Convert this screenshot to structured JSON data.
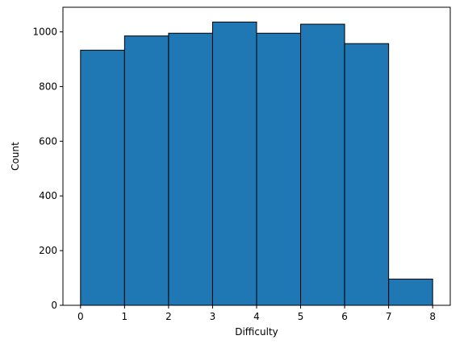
{
  "chart_data": {
    "type": "bar",
    "histogram": true,
    "bin_edges": [
      0,
      1,
      2,
      3,
      4,
      5,
      6,
      7,
      8
    ],
    "values": [
      933,
      985,
      995,
      1036,
      995,
      1028,
      957,
      96
    ],
    "title": "",
    "xlabel": "Difficulty",
    "ylabel": "Count",
    "xlim": [
      -0.4,
      8.4
    ],
    "ylim": [
      0,
      1090
    ],
    "x_ticks": [
      0,
      1,
      2,
      3,
      4,
      5,
      6,
      7,
      8
    ],
    "y_ticks": [
      0,
      200,
      400,
      600,
      800,
      1000
    ],
    "grid": false,
    "legend": "none",
    "bar_color": "#1f77b4",
    "edge_color": "#000000"
  }
}
